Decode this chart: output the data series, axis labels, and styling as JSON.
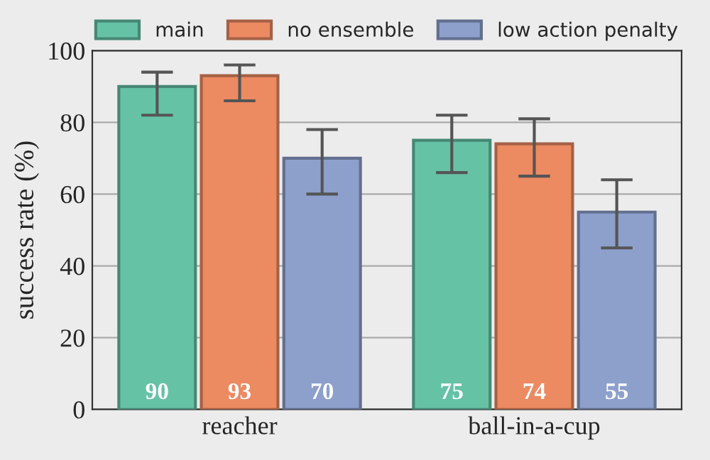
{
  "chart_data": {
    "type": "bar",
    "ylabel": "success rate (%)",
    "categories": [
      "reacher",
      "ball-in-a-cup"
    ],
    "series": [
      {
        "name": "main",
        "color": "#66c2a5",
        "values": [
          90,
          75
        ],
        "errors": [
          [
            82,
            94
          ],
          [
            66,
            82
          ]
        ]
      },
      {
        "name": "no ensemble",
        "color": "#ec8a62",
        "values": [
          93,
          74
        ],
        "errors": [
          [
            86,
            96
          ],
          [
            65,
            81
          ]
        ]
      },
      {
        "name": "low action penalty",
        "color": "#8d9fcb",
        "values": [
          70,
          55
        ],
        "errors": [
          [
            60,
            78
          ],
          [
            45,
            64
          ]
        ]
      }
    ],
    "ylim": [
      0,
      100
    ],
    "yticks": [
      0,
      20,
      40,
      60,
      80,
      100
    ],
    "grid": "y",
    "legend": "top",
    "data_labels": true
  }
}
